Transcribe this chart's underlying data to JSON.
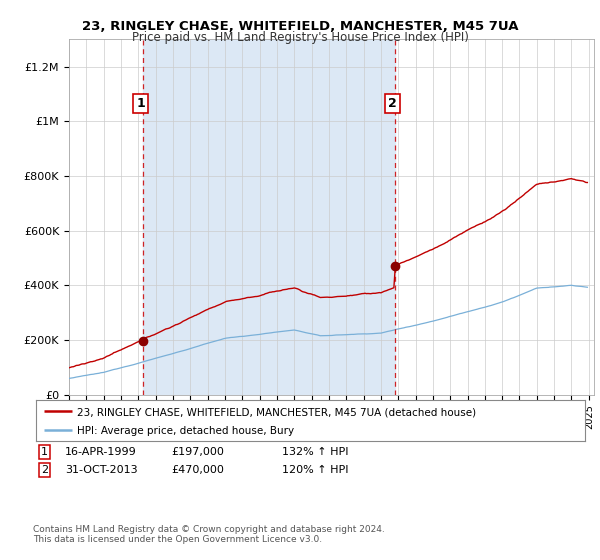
{
  "title": "23, RINGLEY CHASE, WHITEFIELD, MANCHESTER, M45 7UA",
  "subtitle": "Price paid vs. HM Land Registry's House Price Index (HPI)",
  "y_ticks": [
    0,
    200000,
    400000,
    600000,
    800000,
    1000000,
    1200000
  ],
  "y_tick_labels": [
    "£0",
    "£200K",
    "£400K",
    "£600K",
    "£800K",
    "£1M",
    "£1.2M"
  ],
  "sale1_date": 1999.29,
  "sale1_price": 197000,
  "sale2_date": 2013.83,
  "sale2_price": 470000,
  "hpi_line_color": "#7ab0d8",
  "price_line_color": "#c00000",
  "dashed_line_color": "#cc0000",
  "dot_color": "#8b0000",
  "shade_color": "#dce8f5",
  "legend_line1": "23, RINGLEY CHASE, WHITEFIELD, MANCHESTER, M45 7UA (detached house)",
  "legend_line2": "HPI: Average price, detached house, Bury",
  "table_row1": [
    "1",
    "16-APR-1999",
    "£197,000",
    "132% ↑ HPI"
  ],
  "table_row2": [
    "2",
    "31-OCT-2013",
    "£470,000",
    "120% ↑ HPI"
  ],
  "footnote": "Contains HM Land Registry data © Crown copyright and database right 2024.\nThis data is licensed under the Open Government Licence v3.0.",
  "background_color": "#ffffff",
  "plot_bg_color": "#ffffff"
}
